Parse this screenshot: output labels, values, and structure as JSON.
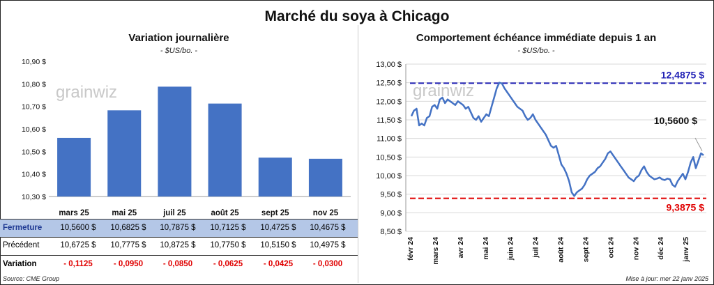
{
  "title": "Marché du soya à Chicago",
  "left": {
    "title": "Variation journalière",
    "subtitle": "- $US/bo. -"
  },
  "right": {
    "title": "Comportement échéance immédiate depuis 1 an",
    "subtitle": "- $US/bo. -"
  },
  "watermark": "grainwiz",
  "table": {
    "row_labels": {
      "close": "Fermeture",
      "prev": "Précédent",
      "var": "Variation"
    },
    "close": [
      "10,5600  $",
      "10,6825  $",
      "10,7875  $",
      "10,7125  $",
      "10,4725  $",
      "10,4675  $"
    ],
    "prev": [
      "10,6725  $",
      "10,7775  $",
      "10,8725  $",
      "10,7750  $",
      "10,5150  $",
      "10,4975  $"
    ],
    "var": [
      "- 0,1125",
      "- 0,0950",
      "- 0,0850",
      "- 0,0625",
      "- 0,0425",
      "- 0,0300"
    ]
  },
  "source": "Source: CME Group",
  "updated": "Mise à jour: mer 22 janv 2025",
  "colors": {
    "bar": "#4472c4",
    "line": "#4472c4",
    "high": "#1f1fb5",
    "low": "#e00000"
  },
  "chart_data": [
    {
      "type": "bar",
      "categories": [
        "mars 25",
        "mai 25",
        "juil 25",
        "août 25",
        "sept 25",
        "nov 25"
      ],
      "values": [
        10.56,
        10.6825,
        10.7875,
        10.7125,
        10.4725,
        10.4675
      ],
      "ylim": [
        10.3,
        10.9
      ],
      "yticks": [
        "10,30 $",
        "10,40 $",
        "10,50 $",
        "10,60 $",
        "10,70 $",
        "10,80 $",
        "10,90 $"
      ],
      "grid": false
    },
    {
      "type": "line",
      "ylim": [
        8.5,
        13.0
      ],
      "yticks": [
        "8,50 $",
        "9,00 $",
        "9,50 $",
        "10,00 $",
        "10,50 $",
        "11,00 $",
        "11,50 $",
        "12,00 $",
        "12,50 $",
        "13,00 $"
      ],
      "xticks": [
        "févr 24",
        "mars 24",
        "avr 24",
        "mai 24",
        "juin 24",
        "juil 24",
        "août 24",
        "sept 24",
        "oct 24",
        "nov 24",
        "déc 24",
        "janv 25"
      ],
      "grid": true,
      "series": [
        {
          "values": [
            11.6,
            11.75,
            11.8,
            11.35,
            11.4,
            11.35,
            11.55,
            11.6,
            11.85,
            11.9,
            11.8,
            12.05,
            12.1,
            11.95,
            12.05,
            12.0,
            11.95,
            11.9,
            12.0,
            11.95,
            11.9,
            11.8,
            11.85,
            11.7,
            11.55,
            11.5,
            11.6,
            11.45,
            11.55,
            11.65,
            11.6,
            11.85,
            12.1,
            12.35,
            12.5,
            12.48,
            12.35,
            12.25,
            12.15,
            12.05,
            11.95,
            11.85,
            11.8,
            11.75,
            11.6,
            11.5,
            11.55,
            11.65,
            11.5,
            11.4,
            11.3,
            11.2,
            11.1,
            10.95,
            10.8,
            10.75,
            10.8,
            10.55,
            10.3,
            10.2,
            10.05,
            9.85,
            9.55,
            9.45,
            9.55,
            9.6,
            9.65,
            9.75,
            9.9,
            10.0,
            10.05,
            10.1,
            10.2,
            10.25,
            10.35,
            10.45,
            10.6,
            10.65,
            10.55,
            10.45,
            10.35,
            10.25,
            10.15,
            10.05,
            9.95,
            9.9,
            9.85,
            9.95,
            10.0,
            10.15,
            10.25,
            10.1,
            10.0,
            9.95,
            9.9,
            9.92,
            9.95,
            9.9,
            9.88,
            9.92,
            9.9,
            9.75,
            9.7,
            9.85,
            9.95,
            10.05,
            9.9,
            10.1,
            10.35,
            10.5,
            10.2,
            10.4,
            10.6,
            10.55
          ]
        }
      ],
      "high": {
        "value": 12.4875,
        "label": "12,4875 $"
      },
      "low": {
        "value": 9.3875,
        "label": "9,3875 $"
      },
      "last": {
        "value": 10.56,
        "label": "10,5600 $"
      }
    }
  ]
}
